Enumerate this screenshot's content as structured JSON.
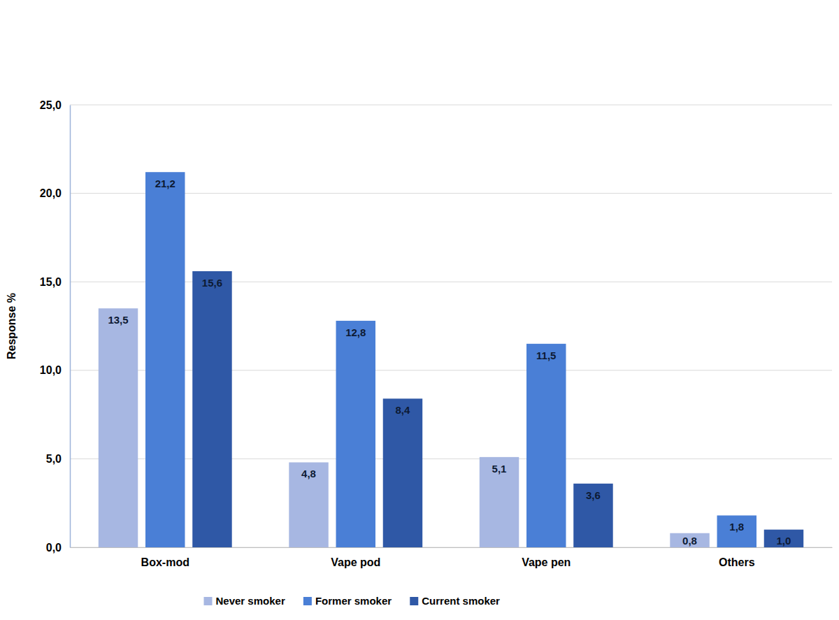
{
  "chart_data": {
    "type": "bar",
    "y_label": "Response %",
    "categories": [
      "Box-mod",
      "Vape pod",
      "Vape pen",
      "Others"
    ],
    "series": [
      {
        "name": "Never smoker",
        "color": "#a7b7e2",
        "values": [
          13.5,
          4.8,
          5.1,
          0.8
        ],
        "value_labels": [
          "13,5",
          "4,8",
          "5,1",
          "0,8"
        ]
      },
      {
        "name": "Former smoker",
        "color": "#4a7fd6",
        "values": [
          21.2,
          12.8,
          11.5,
          1.8
        ],
        "value_labels": [
          "21,2",
          "12,8",
          "11,5",
          "1,8"
        ]
      },
      {
        "name": "Current smoker",
        "color": "#2f58a6",
        "values": [
          15.6,
          8.4,
          3.6,
          1.0
        ],
        "value_labels": [
          "15,6",
          "8,4",
          "3,6",
          "1,0"
        ]
      }
    ],
    "ylim": [
      0,
      25
    ],
    "yticks": [
      {
        "value": 0,
        "label": "0,0"
      },
      {
        "value": 5,
        "label": "5,0"
      },
      {
        "value": 10,
        "label": "10,0"
      },
      {
        "value": 15,
        "label": "15,0"
      },
      {
        "value": 20,
        "label": "20,0"
      },
      {
        "value": 25,
        "label": "25,0"
      }
    ],
    "grid": true,
    "data_labels": true,
    "legend": "bottom"
  }
}
